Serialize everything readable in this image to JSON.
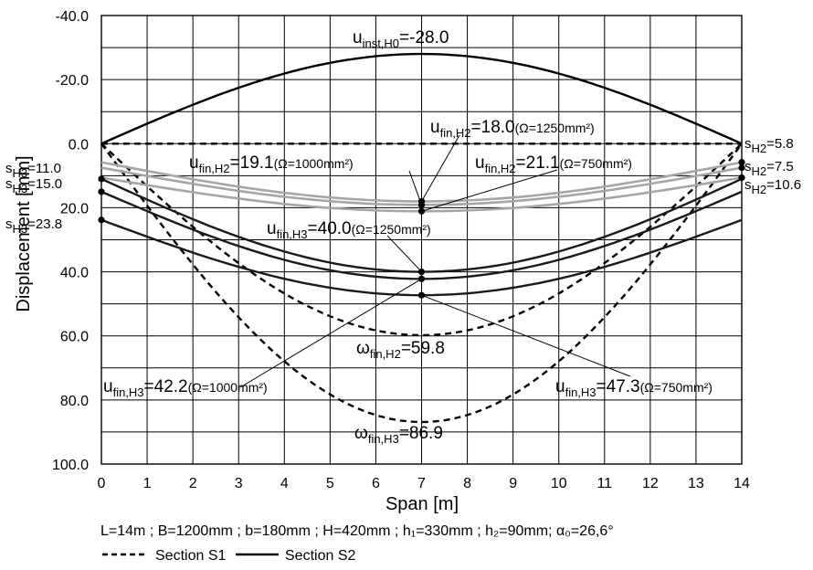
{
  "chart_data": {
    "type": "line",
    "xlabel": "Span [m]",
    "ylabel": "Displacement [mm]",
    "xlim": [
      0,
      14
    ],
    "ylim": [
      -40,
      100
    ],
    "y_inverted": true,
    "grid": true,
    "x_ticks": [
      "0",
      "1",
      "2",
      "3",
      "4",
      "5",
      "6",
      "7",
      "8",
      "9",
      "10",
      "11",
      "12",
      "13",
      "14"
    ],
    "y_ticks": [
      "-40.0",
      "-20.0",
      "0.0",
      "20.0",
      "40.0",
      "60.0",
      "80.0",
      "100.0"
    ],
    "y_tick_values": [
      -40,
      -20,
      0,
      20,
      40,
      60,
      80,
      100
    ],
    "parameters_text": "L=14m ; B=1200mm ; b=180mm ; H=420mm ; h₁=330mm ; h₂=90mm; α₀=26,6°",
    "legend": [
      {
        "label": "Section S1",
        "style": "dashed"
      },
      {
        "label": "Section S2",
        "style": "solid"
      }
    ],
    "series": [
      {
        "key": "inst_H0",
        "section": "S2",
        "color": "#000000",
        "dashed": false,
        "x": [
          0,
          7,
          14
        ],
        "y": [
          0,
          -28.0,
          0
        ]
      },
      {
        "key": "s1_zero",
        "section": "S1",
        "color": "#000000",
        "dashed": true,
        "x": [
          0,
          14
        ],
        "y": [
          0,
          0
        ]
      },
      {
        "key": "omega_H2",
        "section": "S1",
        "color": "#000000",
        "dashed": true,
        "x": [
          0,
          7,
          14
        ],
        "y": [
          0,
          59.8,
          0
        ]
      },
      {
        "key": "omega_H3",
        "section": "S1",
        "color": "#000000",
        "dashed": true,
        "x": [
          0,
          7,
          14
        ],
        "y": [
          0,
          86.9,
          0
        ]
      },
      {
        "key": "H2_1250",
        "section": "S2",
        "color": "#a6a6a6",
        "dashed": false,
        "x": [
          0,
          7,
          14
        ],
        "y": [
          5.8,
          18.0,
          5.8
        ]
      },
      {
        "key": "H2_1000",
        "section": "S2",
        "color": "#a6a6a6",
        "dashed": false,
        "x": [
          0,
          7,
          14
        ],
        "y": [
          7.5,
          19.1,
          7.5
        ]
      },
      {
        "key": "H2_750",
        "section": "S2",
        "color": "#a6a6a6",
        "dashed": false,
        "x": [
          0,
          7,
          14
        ],
        "y": [
          10.6,
          21.1,
          10.6
        ]
      },
      {
        "key": "H3_1250",
        "section": "S2",
        "color": "#1a1a1a",
        "dashed": false,
        "x": [
          0,
          7,
          14
        ],
        "y": [
          11.0,
          40.0,
          11.0
        ]
      },
      {
        "key": "H3_1000",
        "section": "S2",
        "color": "#1a1a1a",
        "dashed": false,
        "x": [
          0,
          7,
          14
        ],
        "y": [
          15.0,
          42.2,
          15.0
        ]
      },
      {
        "key": "H3_750",
        "section": "S2",
        "color": "#1a1a1a",
        "dashed": false,
        "x": [
          0,
          7,
          14
        ],
        "y": [
          23.8,
          47.3,
          23.8
        ]
      }
    ],
    "midspan_points": [
      {
        "series": "H2_1250",
        "x": 7,
        "y": 18.0
      },
      {
        "series": "H2_1000",
        "x": 7,
        "y": 19.1
      },
      {
        "series": "H2_750",
        "x": 7,
        "y": 21.1
      },
      {
        "series": "H3_1250",
        "x": 7,
        "y": 40.0
      },
      {
        "series": "H3_1000",
        "x": 7,
        "y": 42.2
      },
      {
        "series": "H3_750",
        "x": 7,
        "y": 47.3
      }
    ],
    "support_points": [
      {
        "x": 0,
        "y": 11.0
      },
      {
        "x": 0,
        "y": 15.0
      },
      {
        "x": 0,
        "y": 23.8
      },
      {
        "x": 14,
        "y": 5.8
      },
      {
        "x": 14,
        "y": 7.5
      },
      {
        "x": 14,
        "y": 10.6
      }
    ],
    "annotations": {
      "inst_H0": {
        "sym": "u",
        "sub": "inst,H0",
        "value": "=-28.0",
        "note": ""
      },
      "H2_1250": {
        "sym": "u",
        "sub": "fin,H2",
        "value": "=18.0",
        "note": "(Ω=1250mm²)"
      },
      "H2_1000": {
        "sym": "u",
        "sub": "fin,H2",
        "value": "=19.1",
        "note": "(Ω=1000mm²)"
      },
      "H2_750": {
        "sym": "u",
        "sub": "fin,H2",
        "value": "=21.1",
        "note": "(Ω=750mm²)"
      },
      "H3_1250": {
        "sym": "u",
        "sub": "fin,H3",
        "value": "=40.0",
        "note": "(Ω=1250mm²)"
      },
      "H3_1000": {
        "sym": "u",
        "sub": "fin,H3",
        "value": "=42.2",
        "note": "(Ω=1000mm²)"
      },
      "H3_750": {
        "sym": "u",
        "sub": "fin,H3",
        "value": "=47.3",
        "note": "(Ω=750mm²)"
      },
      "omega_H2": {
        "sym": "ω",
        "sub": "fin,H2",
        "value": "=59.8",
        "note": ""
      },
      "omega_H3": {
        "sym": "ω",
        "sub": "fin,H3",
        "value": "=86.9",
        "note": ""
      }
    },
    "side_labels": {
      "left": [
        {
          "sym": "s",
          "sub": "H3",
          "value": "=11.0"
        },
        {
          "sym": "s",
          "sub": "H3",
          "value": "=15.0"
        },
        {
          "sym": "s",
          "sub": "H3",
          "value": "=23.8"
        }
      ],
      "right": [
        {
          "sym": "s",
          "sub": "H2",
          "value": "=5.8"
        },
        {
          "sym": "s",
          "sub": "H2",
          "value": "=7.5"
        },
        {
          "sym": "s",
          "sub": "H2",
          "value": "=10.6"
        }
      ]
    }
  }
}
